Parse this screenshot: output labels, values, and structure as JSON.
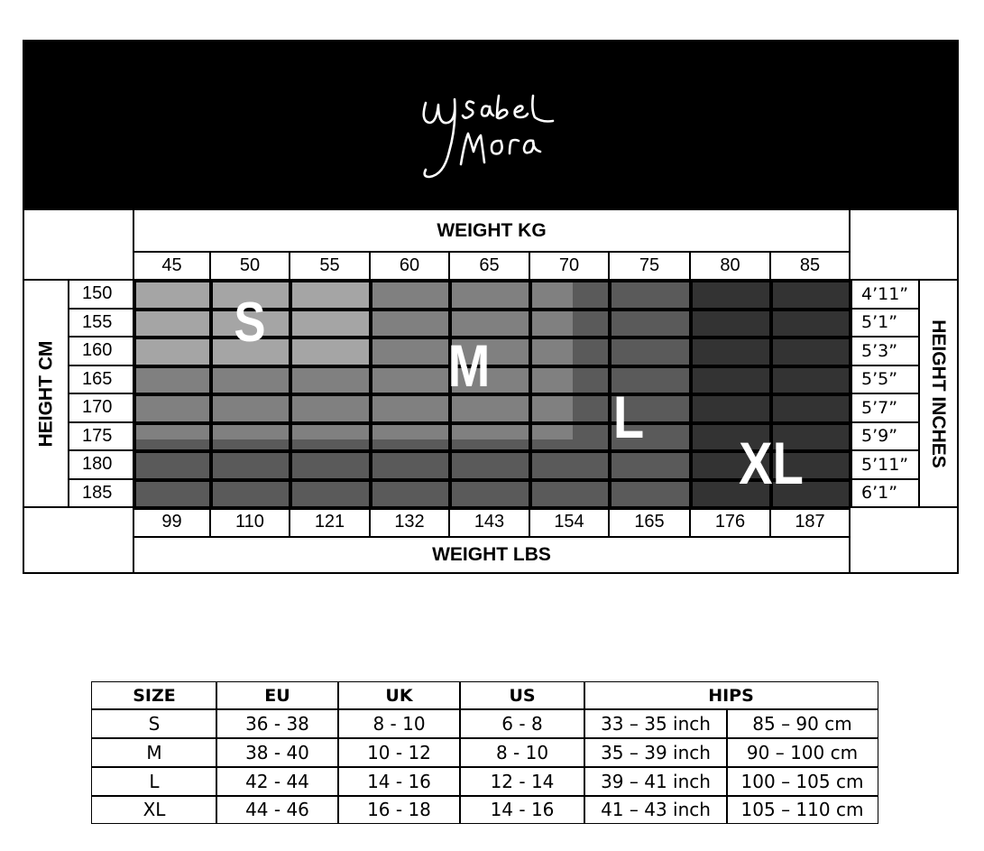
{
  "logo": {
    "text": "Ysabel Mora",
    "background": "#000000"
  },
  "chart": {
    "weight_kg_title": "WEIGHT KG",
    "weight_lbs_title": "WEIGHT LBS",
    "height_cm_title": "HEIGHT CM",
    "height_inches_title": "HEIGHT INCHES",
    "weight_kg": [
      "45",
      "50",
      "55",
      "60",
      "65",
      "70",
      "75",
      "80",
      "85"
    ],
    "weight_lbs": [
      "99",
      "110",
      "121",
      "132",
      "143",
      "154",
      "165",
      "176",
      "187"
    ],
    "height_cm": [
      "150",
      "155",
      "160",
      "165",
      "170",
      "175",
      "180",
      "185"
    ],
    "height_in": [
      "4’11”",
      "5’1”",
      "5’3”",
      "5’5”",
      "5’7”",
      "5’9”",
      "5’11”",
      "6’1”"
    ],
    "sizes": [
      {
        "label": "S",
        "color": "#a5a5a5",
        "max_kg": 55,
        "max_cm": 160
      },
      {
        "label": "M",
        "color": "#808080",
        "max_kg": 70,
        "max_cm": 175
      },
      {
        "label": "L",
        "color": "#5a5a5a",
        "max_kg": 75,
        "max_cm": 185
      },
      {
        "label": "XL",
        "color": "#333333",
        "max_kg": 85,
        "max_cm": 185
      }
    ]
  },
  "size_table": {
    "headers": [
      "SIZE",
      "EU",
      "UK",
      "US",
      "HIPS"
    ],
    "rows": [
      [
        "S",
        "36 - 38",
        "8 - 10",
        "6 - 8",
        "33 – 35 inch",
        "85 – 90 cm"
      ],
      [
        "M",
        "38 - 40",
        "10 - 12",
        "8 - 10",
        "35 – 39 inch",
        "90 – 100 cm"
      ],
      [
        "L",
        "42 - 44",
        "14 - 16",
        "12 - 14",
        "39 – 41 inch",
        "100 – 105 cm"
      ],
      [
        "XL",
        "44 - 46",
        "16 - 18",
        "14 - 16",
        "41 – 43 inch",
        "105 – 110 cm"
      ]
    ]
  }
}
